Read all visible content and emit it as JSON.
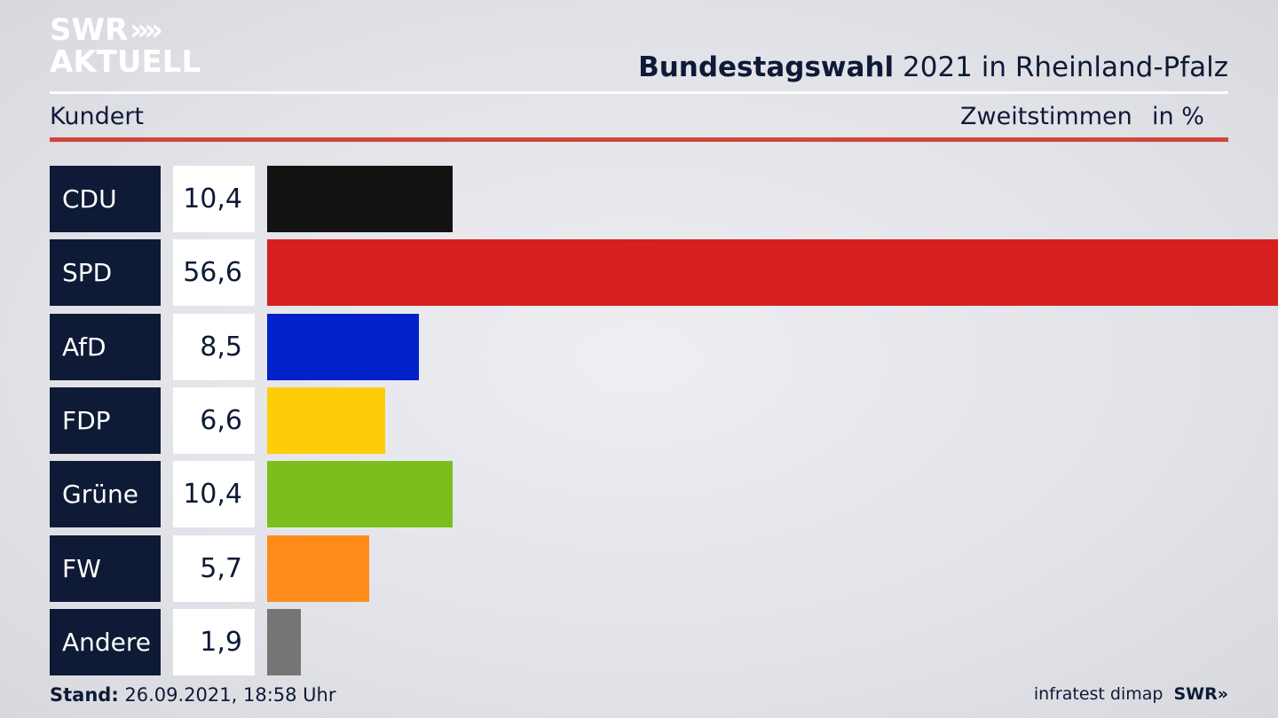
{
  "brand": {
    "logo_line1": "SWR",
    "logo_line2": "AKTUELL",
    "logo_chevrons": "»"
  },
  "header": {
    "title_bold": "Bundestagswahl",
    "title_rest": " 2021 in Rheinland-Pfalz",
    "location": "Kundert",
    "metric": "Zweitstimmen",
    "unit": "in %"
  },
  "chart_data": {
    "type": "bar",
    "orientation": "horizontal",
    "categories": [
      "CDU",
      "SPD",
      "AfD",
      "FDP",
      "Grüne",
      "FW",
      "Andere"
    ],
    "values": [
      10.4,
      56.6,
      8.5,
      6.6,
      10.4,
      5.7,
      1.9
    ],
    "value_labels": [
      "10,4",
      "56,6",
      "8,5",
      "6,6",
      "10,4",
      "5,7",
      "1,9"
    ],
    "colors": [
      "#121212",
      "#d62020",
      "#0022c8",
      "#ffcc0a",
      "#7abf1e",
      "#ff8c1a",
      "#757575"
    ],
    "xlim": [
      0,
      56.6
    ],
    "grid": false
  },
  "footer": {
    "stand_label": "Stand:",
    "stand_value": " 26.09.2021, 18:58 Uhr",
    "source": "infratest dimap",
    "source_logo": "SWR»"
  }
}
